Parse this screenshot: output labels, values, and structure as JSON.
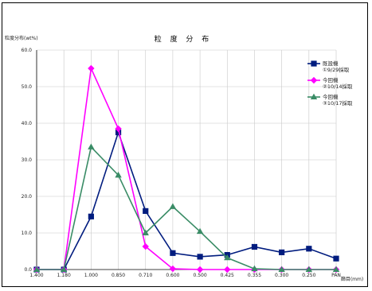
{
  "chart_data": {
    "type": "line",
    "title": "粒 度 分 布",
    "ylabel": "粒度分布(wt%)",
    "xlabel": "篩目(mm)",
    "ylim": [
      0,
      60
    ],
    "yticks": [
      "0.0",
      "10.0",
      "20.0",
      "30.0",
      "40.0",
      "50.0",
      "60.0"
    ],
    "categories": [
      "1.400",
      "1.180",
      "1.000",
      "0.850",
      "0.710",
      "0.600",
      "0.500",
      "0.425",
      "0.355",
      "0.300",
      "0.250",
      "PAN"
    ],
    "grid": true,
    "legend_position": "top-right",
    "series": [
      {
        "name": "既設機",
        "sub": "①9/29採取",
        "color": "#001c7f",
        "marker": "square",
        "values": [
          0,
          0,
          14.5,
          37.5,
          16.0,
          4.5,
          3.5,
          4.0,
          6.2,
          4.7,
          5.7,
          3.0
        ]
      },
      {
        "name": "今回機",
        "sub": "②10/14採取",
        "color": "#ff00ff",
        "marker": "diamond",
        "values": [
          0,
          0,
          55.0,
          38.5,
          6.3,
          0.2,
          0,
          0,
          0,
          0,
          0,
          0
        ]
      },
      {
        "name": "今回機",
        "sub": "③10/17採取",
        "color": "#3a8c66",
        "marker": "triangle",
        "values": [
          0,
          0,
          33.5,
          25.8,
          10.0,
          17.2,
          10.4,
          3.2,
          0.2,
          0,
          0,
          0
        ]
      }
    ]
  }
}
